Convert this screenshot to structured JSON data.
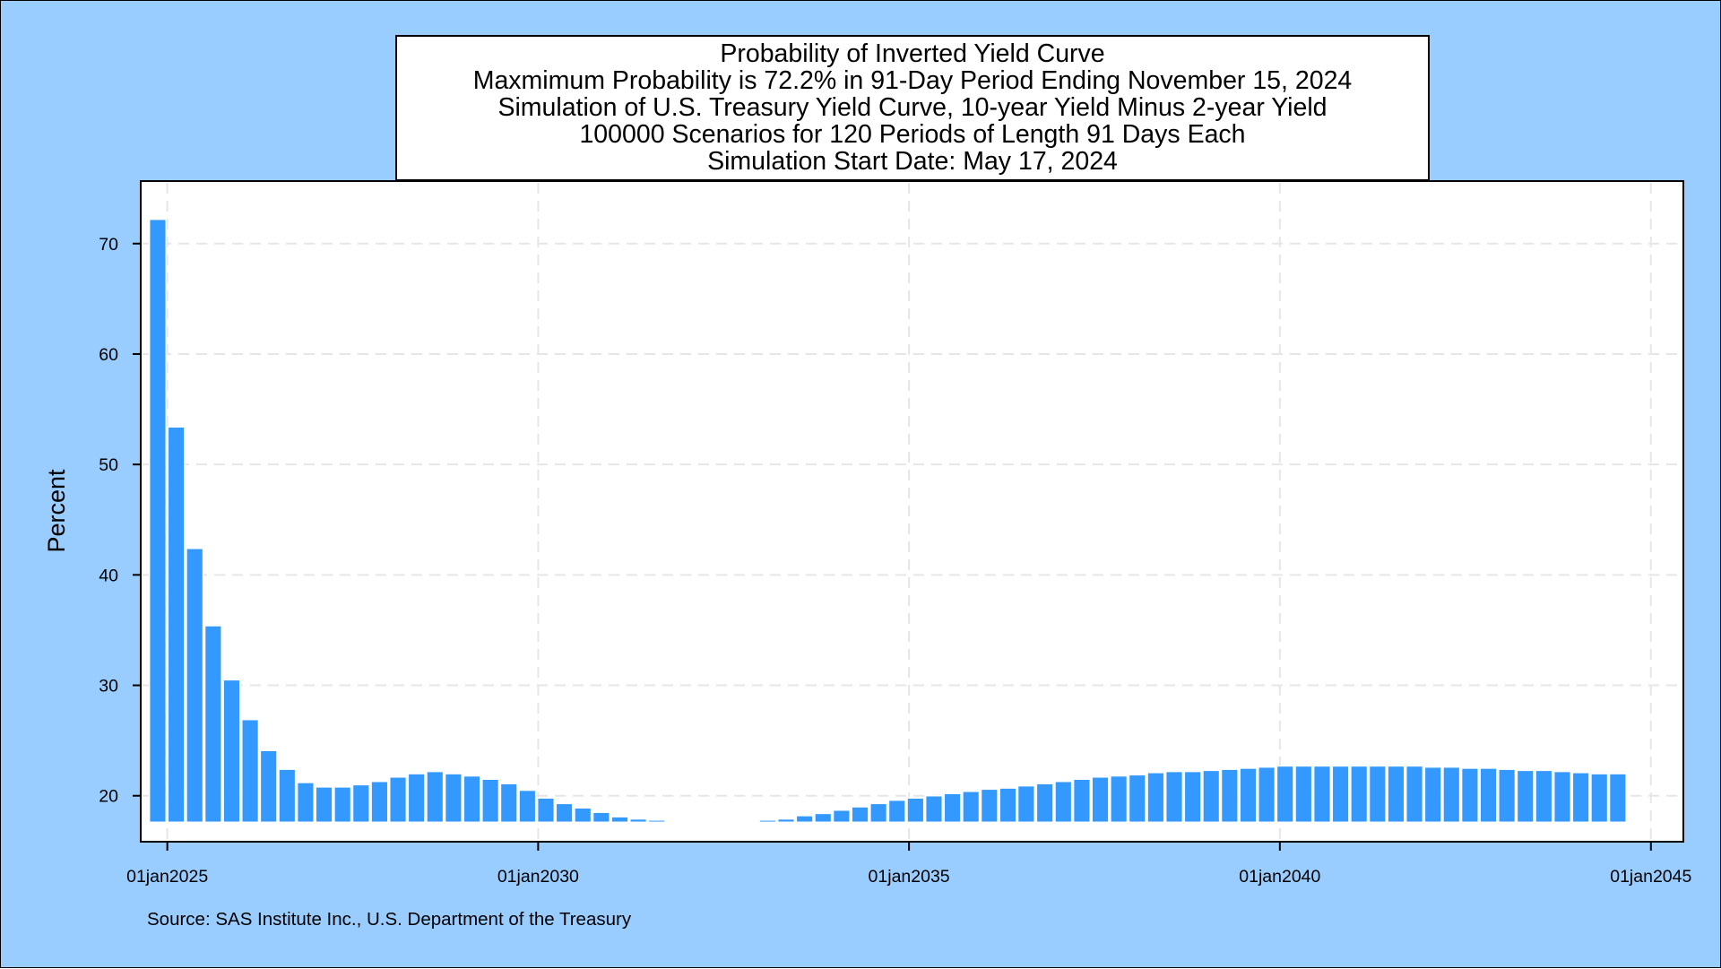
{
  "chart_data": {
    "type": "bar",
    "title_lines": [
      "Probability of Inverted Yield Curve",
      "Maxmimum Probability is 72.2% in 91-Day Period Ending November 15, 2024",
      "Simulation of U.S. Treasury Yield Curve, 10-year Yield Minus 2-year Yield",
      "100000 Scenarios for 120 Periods of Length 91 Days Each",
      "Simulation Start Date: May 17, 2024"
    ],
    "ylabel": "Percent",
    "xlabel": "",
    "source_note": "Source: SAS Institute Inc., U.S. Department of the Treasury",
    "ylim": [
      16.0,
      75.5
    ],
    "yticks": [
      20,
      30,
      40,
      50,
      60,
      70
    ],
    "xlim": [
      "2024-09-01",
      "2045-06-01"
    ],
    "xticks": [
      "2025-01-01",
      "2030-01-01",
      "2035-01-01",
      "2040-01-01",
      "2045-01-01"
    ],
    "xtick_labels": [
      "01jan2025",
      "01jan2030",
      "01jan2035",
      "01jan2040",
      "01jan2045"
    ],
    "bar_baseline": 17.6,
    "grid": true,
    "bar_color": "#3399ff",
    "bar_outline": "#ffffff",
    "plot_background": "#ffffff",
    "outer_background": "#99ccff",
    "period_end_dates": [
      "2024-11-15",
      "2025-02-14",
      "2025-05-16",
      "2025-08-15",
      "2025-11-14",
      "2026-02-13",
      "2026-05-15",
      "2026-08-14",
      "2026-11-13",
      "2027-02-12",
      "2027-05-14",
      "2027-08-13",
      "2027-11-12",
      "2028-02-11",
      "2028-05-12",
      "2028-08-11",
      "2028-11-10",
      "2029-02-09",
      "2029-05-11",
      "2029-08-10",
      "2029-11-09",
      "2030-02-08",
      "2030-05-10",
      "2030-08-09",
      "2030-11-08",
      "2031-02-07",
      "2031-05-09",
      "2031-08-08",
      "2031-11-07",
      "2032-02-06",
      "2032-05-07",
      "2032-08-06",
      "2032-11-05",
      "2033-02-04",
      "2033-05-06",
      "2033-08-05",
      "2033-11-04",
      "2034-02-03",
      "2034-05-05",
      "2034-08-04",
      "2034-11-03",
      "2035-02-02",
      "2035-05-04",
      "2035-08-03",
      "2035-11-02",
      "2036-02-01",
      "2036-05-02",
      "2036-07-31",
      "2036-10-31",
      "2037-01-30",
      "2037-05-01",
      "2037-07-31",
      "2037-10-30",
      "2038-01-29",
      "2038-04-30",
      "2038-07-30",
      "2038-10-29",
      "2039-01-28",
      "2039-04-29",
      "2039-07-29",
      "2039-10-28",
      "2040-01-27",
      "2040-04-27",
      "2040-07-27",
      "2040-10-26",
      "2041-01-25",
      "2041-04-26",
      "2041-07-26",
      "2041-10-25",
      "2042-01-24",
      "2042-04-25",
      "2042-07-25",
      "2042-10-24",
      "2043-01-23",
      "2043-04-24",
      "2043-07-24",
      "2043-10-23",
      "2044-01-22",
      "2044-04-22",
      "2044-07-22"
    ],
    "series": [
      {
        "values": [
          72.2,
          53.4,
          42.4,
          35.4,
          30.5,
          26.9,
          24.1,
          22.4,
          21.2,
          20.8,
          20.8,
          21.0,
          21.3,
          21.7,
          22.0,
          22.2,
          22.0,
          21.8,
          21.5,
          21.1,
          20.5,
          19.8,
          19.3,
          18.9,
          18.5,
          18.1,
          17.9,
          17.8,
          17.7,
          17.7,
          17.7,
          17.7,
          17.7,
          17.8,
          17.9,
          18.2,
          18.4,
          18.7,
          19.0,
          19.3,
          19.6,
          19.8,
          20.0,
          20.2,
          20.4,
          20.6,
          20.7,
          20.9,
          21.1,
          21.3,
          21.5,
          21.7,
          21.8,
          21.9,
          22.1,
          22.2,
          22.2,
          22.3,
          22.4,
          22.5,
          22.6,
          22.7,
          22.7,
          22.7,
          22.7,
          22.7,
          22.7,
          22.7,
          22.7,
          22.6,
          22.6,
          22.5,
          22.5,
          22.4,
          22.3,
          22.3,
          22.2,
          22.1,
          22.0,
          22.0
        ]
      }
    ]
  }
}
